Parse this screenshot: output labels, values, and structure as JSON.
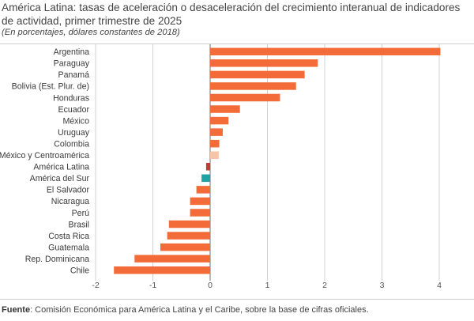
{
  "title": "América Latina: tasas de aceleración o desaceleración del crecimiento interanual de indicadores de actividad, primer trimestre de 2025",
  "subtitle": "(En porcentajes, dólares constantes de 2018)",
  "source": {
    "label": "Fuente",
    "text": ":  Comisión Económica para América Latina y el Caribe, sobre la base de cifras oficiales."
  },
  "colors": {
    "country": "#f26b38",
    "mexico_centroamerica": "#f9c3a6",
    "america_latina": "#c33a3a",
    "america_del_sur": "#1fa3a3",
    "grid": "#d0d0d0",
    "zero_line": "#8a8a8a"
  },
  "chart_data": {
    "type": "bar",
    "orientation": "horizontal",
    "categories": [
      "Argentina",
      "Paraguay",
      "Panamá",
      "Bolivia (Est. Plur. de)",
      "Honduras",
      "Ecuador",
      "México",
      "Uruguay",
      "Colombia",
      "México y Centroamérica",
      "América Latina",
      "América del Sur",
      "El Salvador",
      "Nicaragua",
      "Perú",
      "Brasil",
      "Costa Rica",
      "Guatemala",
      "Rep. Dominicana",
      "Chile"
    ],
    "values": [
      4.02,
      1.88,
      1.65,
      1.5,
      1.22,
      0.52,
      0.32,
      0.22,
      0.16,
      0.15,
      -0.07,
      -0.15,
      -0.24,
      -0.35,
      -0.35,
      -0.72,
      -0.75,
      -0.87,
      -1.32,
      -1.68
    ],
    "bar_colors": [
      "country",
      "country",
      "country",
      "country",
      "country",
      "country",
      "country",
      "country",
      "country",
      "mexico_centroamerica",
      "america_latina",
      "america_del_sur",
      "country",
      "country",
      "country",
      "country",
      "country",
      "country",
      "country",
      "country"
    ],
    "xlim": [
      -2,
      4.5
    ],
    "xticks": [
      -2,
      -1,
      0,
      1,
      2,
      3,
      4
    ],
    "xtick_labels": [
      "-2",
      "-1",
      "0",
      "1",
      "2",
      "3",
      "4"
    ],
    "grid": true
  }
}
